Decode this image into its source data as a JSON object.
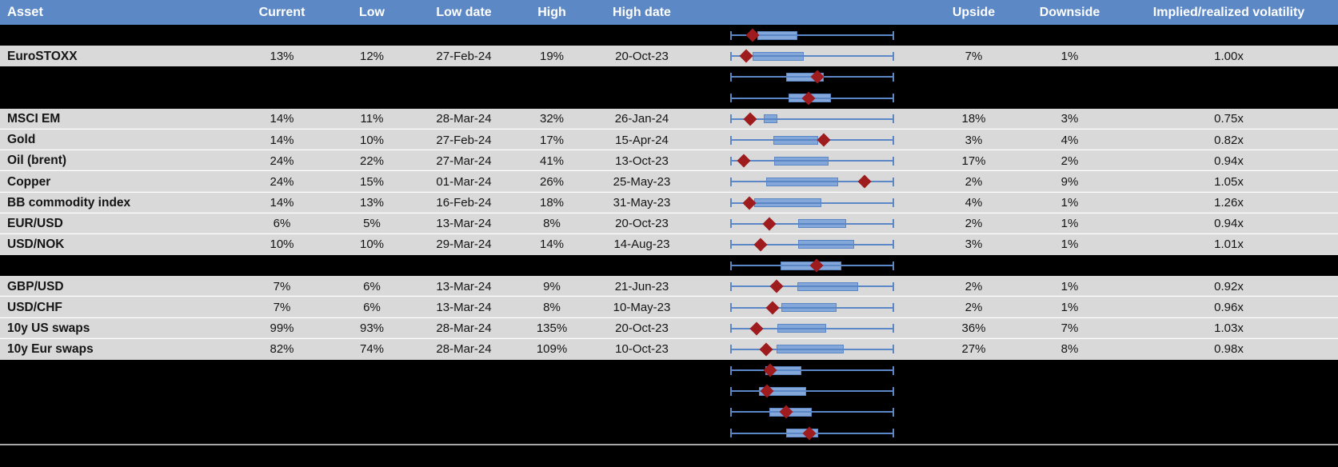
{
  "header": {
    "columns": [
      "Asset",
      "Current",
      "Low",
      "Low date",
      "High",
      "High date",
      "",
      "Upside",
      "Downside",
      "Implied/realized volatility"
    ]
  },
  "colors": {
    "header_bg": "#5c88c5",
    "header_text": "#ffffff",
    "row_gray": "#d9d9d9",
    "row_black": "#000000",
    "whisker_blue": "#5b87c6",
    "box_fill": "#82a7d8",
    "marker_red": "#9e1b1e",
    "footer_line": "#a6a6a6"
  },
  "boxplot_defaults": {
    "whisker_lo": 0,
    "whisker_hi": 1
  },
  "rows": [
    {
      "bg": "black",
      "asset": "",
      "current": "",
      "low": "",
      "low_date": "",
      "high": "",
      "high_date": "",
      "upside": "",
      "downside": "",
      "implied_realized": "",
      "box": {
        "box_lo": 0.164,
        "box_hi": 0.408,
        "marker": 0.135
      }
    },
    {
      "bg": "gray",
      "asset": "EuroSTOXX",
      "current": "13%",
      "low": "12%",
      "low_date": "27-Feb-24",
      "high": "19%",
      "high_date": "20-Oct-23",
      "upside": "7%",
      "downside": "1%",
      "implied_realized": "1.00x",
      "box": {
        "box_lo": 0.135,
        "box_hi": 0.449,
        "marker": 0.096
      }
    },
    {
      "bg": "black",
      "asset": "",
      "current": "",
      "low": "",
      "low_date": "",
      "high": "",
      "high_date": "",
      "upside": "",
      "downside": "",
      "implied_realized": "",
      "box": {
        "box_lo": 0.343,
        "box_hi": 0.571,
        "marker": 0.53
      }
    },
    {
      "bg": "black",
      "asset": "",
      "current": "",
      "low": "",
      "low_date": "",
      "high": "",
      "high_date": "",
      "upside": "",
      "downside": "",
      "implied_realized": "",
      "box": {
        "box_lo": 0.356,
        "box_hi": 0.615,
        "marker": 0.478
      }
    },
    {
      "bg": "gray",
      "asset": "MSCI EM",
      "current": "14%",
      "low": "11%",
      "low_date": "28-Mar-24",
      "high": "32%",
      "high_date": "26-Jan-24",
      "upside": "18%",
      "downside": "3%",
      "implied_realized": "0.75x",
      "box": {
        "box_lo": 0.205,
        "box_hi": 0.289,
        "marker": 0.12
      }
    },
    {
      "bg": "gray",
      "asset": "Gold",
      "current": "14%",
      "low": "10%",
      "low_date": "27-Feb-24",
      "high": "17%",
      "high_date": "15-Apr-24",
      "upside": "3%",
      "downside": "4%",
      "implied_realized": "0.82x",
      "box": {
        "box_lo": 0.262,
        "box_hi": 0.538,
        "marker": 0.571
      }
    },
    {
      "bg": "gray",
      "asset": "Oil (brent)",
      "current": "24%",
      "low": "22%",
      "low_date": "27-Mar-24",
      "high": "41%",
      "high_date": "13-Oct-23",
      "upside": "17%",
      "downside": "2%",
      "implied_realized": "0.94x",
      "box": {
        "box_lo": 0.267,
        "box_hi": 0.6,
        "marker": 0.083
      }
    },
    {
      "bg": "gray",
      "asset": "Copper",
      "current": "24%",
      "low": "15%",
      "low_date": "01-Mar-24",
      "high": "26%",
      "high_date": "25-May-23",
      "upside": "2%",
      "downside": "9%",
      "implied_realized": "1.05x",
      "box": {
        "box_lo": 0.218,
        "box_hi": 0.657,
        "marker": 0.82
      }
    },
    {
      "bg": "gray",
      "asset": "BB commodity index",
      "current": "14%",
      "low": "13%",
      "low_date": "16-Feb-24",
      "high": "18%",
      "high_date": "31-May-23",
      "upside": "4%",
      "downside": "1%",
      "implied_realized": "1.26x",
      "box": {
        "box_lo": 0.148,
        "box_hi": 0.555,
        "marker": 0.116
      }
    },
    {
      "bg": "gray",
      "asset": "EUR/USD",
      "current": "6%",
      "low": "5%",
      "low_date": "13-Mar-24",
      "high": "8%",
      "high_date": "20-Oct-23",
      "upside": "2%",
      "downside": "1%",
      "implied_realized": "0.94x",
      "box": {
        "box_lo": 0.416,
        "box_hi": 0.709,
        "marker": 0.241
      }
    },
    {
      "bg": "gray",
      "asset": "USD/NOK",
      "current": "10%",
      "low": "10%",
      "low_date": "29-Mar-24",
      "high": "14%",
      "high_date": "14-Aug-23",
      "upside": "3%",
      "downside": "1%",
      "implied_realized": "1.01x",
      "box": {
        "box_lo": 0.413,
        "box_hi": 0.758,
        "marker": 0.185
      }
    },
    {
      "bg": "black",
      "asset": "",
      "current": "",
      "low": "",
      "low_date": "",
      "high": "",
      "high_date": "",
      "upside": "",
      "downside": "",
      "implied_realized": "",
      "box": {
        "box_lo": 0.307,
        "box_hi": 0.677,
        "marker": 0.527
      }
    },
    {
      "bg": "gray",
      "asset": "GBP/USD",
      "current": "7%",
      "low": "6%",
      "low_date": "13-Mar-24",
      "high": "9%",
      "high_date": "21-Jun-23",
      "upside": "2%",
      "downside": "1%",
      "implied_realized": "0.92x",
      "box": {
        "box_lo": 0.408,
        "box_hi": 0.782,
        "marker": 0.283
      }
    },
    {
      "bg": "gray",
      "asset": "USD/CHF",
      "current": "7%",
      "low": "6%",
      "low_date": "13-Mar-24",
      "high": "8%",
      "high_date": "10-May-23",
      "upside": "2%",
      "downside": "1%",
      "implied_realized": "0.96x",
      "box": {
        "box_lo": 0.311,
        "box_hi": 0.647,
        "marker": 0.257
      }
    },
    {
      "bg": "gray",
      "asset": "10y US swaps",
      "current": "99%",
      "low": "93%",
      "low_date": "28-Mar-24",
      "high": "135%",
      "high_date": "20-Oct-23",
      "upside": "36%",
      "downside": "7%",
      "implied_realized": "1.03x",
      "box": {
        "box_lo": 0.286,
        "box_hi": 0.584,
        "marker": 0.16
      }
    },
    {
      "bg": "gray",
      "asset": "10y Eur swaps",
      "current": "82%",
      "low": "74%",
      "low_date": "28-Mar-24",
      "high": "109%",
      "high_date": "10-Oct-23",
      "upside": "27%",
      "downside": "8%",
      "implied_realized": "0.98x",
      "box": {
        "box_lo": 0.283,
        "box_hi": 0.693,
        "marker": 0.221
      }
    },
    {
      "bg": "black",
      "asset": "",
      "current": "",
      "low": "",
      "low_date": "",
      "high": "",
      "high_date": "",
      "upside": "",
      "downside": "",
      "implied_realized": "",
      "box": {
        "box_lo": 0.216,
        "box_hi": 0.433,
        "marker": 0.242
      }
    },
    {
      "bg": "black",
      "asset": "",
      "current": "",
      "low": "",
      "low_date": "",
      "high": "",
      "high_date": "",
      "upside": "",
      "downside": "",
      "implied_realized": "",
      "box": {
        "box_lo": 0.177,
        "box_hi": 0.465,
        "marker": 0.226
      }
    },
    {
      "bg": "black",
      "asset": "",
      "current": "",
      "low": "",
      "low_date": "",
      "high": "",
      "high_date": "",
      "upside": "",
      "downside": "",
      "implied_realized": "",
      "box": {
        "box_lo": 0.238,
        "box_hi": 0.498,
        "marker": 0.343
      }
    },
    {
      "bg": "black",
      "asset": "",
      "current": "",
      "low": "",
      "low_date": "",
      "high": "",
      "high_date": "",
      "upside": "",
      "downside": "",
      "implied_realized": "",
      "box": {
        "box_lo": 0.343,
        "box_hi": 0.538,
        "marker": 0.481
      }
    }
  ]
}
